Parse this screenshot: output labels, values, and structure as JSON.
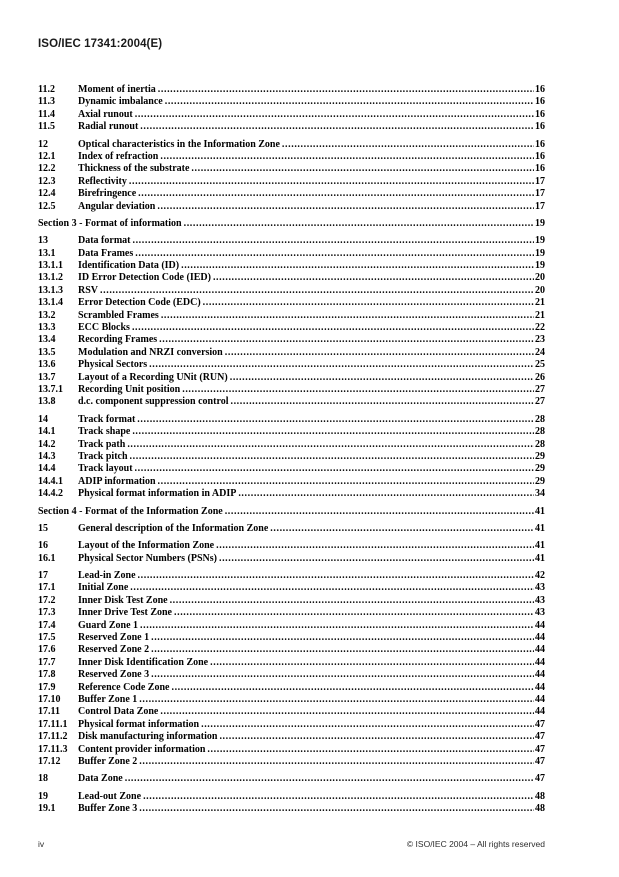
{
  "page": {
    "header_title": "ISO/IEC 17341:2004(E)",
    "footer": {
      "page_label": "iv",
      "copyright": "© ISO/IEC 2004 – All rights reserved"
    },
    "colors": {
      "background": "#ffffff",
      "text": "#000000"
    }
  },
  "toc": {
    "groups": [
      {
        "rows": [
          {
            "num": "11.2",
            "title": "Moment of inertia",
            "page": "16"
          },
          {
            "num": "11.3",
            "title": "Dynamic imbalance",
            "page": "16"
          },
          {
            "num": "11.4",
            "title": "Axial runout",
            "page": "16"
          },
          {
            "num": "11.5",
            "title": "Radial runout",
            "page": "16"
          }
        ]
      },
      {
        "rows": [
          {
            "num": "12",
            "title": "Optical characteristics in the Information Zone",
            "page": "16"
          },
          {
            "num": "12.1",
            "title": "Index of refraction",
            "page": "16"
          },
          {
            "num": "12.2",
            "title": "Thickness of the substrate",
            "page": "16"
          },
          {
            "num": "12.3",
            "title": "Reflectivity",
            "page": "17"
          },
          {
            "num": "12.4",
            "title": "Birefringence",
            "page": "17"
          },
          {
            "num": "12.5",
            "title": "Angular deviation",
            "page": "17"
          }
        ]
      },
      {
        "rows": [
          {
            "num": "",
            "title": "Section 3 - Format of information",
            "page": "19"
          }
        ]
      },
      {
        "rows": [
          {
            "num": "13",
            "title": "Data format",
            "page": "19"
          },
          {
            "num": "13.1",
            "title": "Data Frames",
            "page": "19"
          },
          {
            "num": "13.1.1",
            "title": "Identification Data (ID)",
            "page": "19"
          },
          {
            "num": "13.1.2",
            "title": "ID Error Detection Code (IED)",
            "page": "20"
          },
          {
            "num": "13.1.3",
            "title": "RSV",
            "page": "20"
          },
          {
            "num": "13.1.4",
            "title": "Error Detection Code (EDC)",
            "page": "21"
          },
          {
            "num": "13.2",
            "title": "Scrambled Frames",
            "page": "21"
          },
          {
            "num": "13.3",
            "title": "ECC Blocks",
            "page": "22"
          },
          {
            "num": "13.4",
            "title": "Recording Frames",
            "page": "23"
          },
          {
            "num": "13.5",
            "title": "Modulation and NRZI conversion",
            "page": "24"
          },
          {
            "num": "13.6",
            "title": "Physical Sectors",
            "page": "25"
          },
          {
            "num": "13.7",
            "title": "Layout of a Recording UNit (RUN)",
            "page": "26"
          },
          {
            "num": "13.7.1",
            "title": "Recording Unit position",
            "page": "27"
          },
          {
            "num": "13.8",
            "title": "d.c. component suppression control",
            "page": "27"
          }
        ]
      },
      {
        "rows": [
          {
            "num": "14",
            "title": "Track format",
            "page": "28"
          },
          {
            "num": "14.1",
            "title": "Track shape",
            "page": "28"
          },
          {
            "num": "14.2",
            "title": "Track path",
            "page": "28"
          },
          {
            "num": "14.3",
            "title": "Track pitch",
            "page": "29"
          },
          {
            "num": "14.4",
            "title": "Track layout",
            "page": "29"
          },
          {
            "num": "14.4.1",
            "title": "ADIP information",
            "page": "29"
          },
          {
            "num": "14.4.2",
            "title": "Physical format information in ADIP",
            "page": "34"
          }
        ]
      },
      {
        "rows": [
          {
            "num": "",
            "title": "Section 4 - Format of the Information Zone",
            "page": "41"
          }
        ]
      },
      {
        "rows": [
          {
            "num": "15",
            "title": "General description of the Information Zone",
            "page": "41"
          }
        ]
      },
      {
        "rows": [
          {
            "num": "16",
            "title": "Layout of the Information Zone",
            "page": "41"
          },
          {
            "num": "16.1",
            "title": "Physical Sector Numbers (PSNs)",
            "page": "41"
          }
        ]
      },
      {
        "rows": [
          {
            "num": "17",
            "title": "Lead-in Zone",
            "page": "42"
          },
          {
            "num": "17.1",
            "title": "Initial Zone",
            "page": "43"
          },
          {
            "num": "17.2",
            "title": "Inner Disk Test Zone",
            "page": "43"
          },
          {
            "num": "17.3",
            "title": "Inner Drive Test Zone",
            "page": "43"
          },
          {
            "num": "17.4",
            "title": "Guard Zone 1",
            "page": "44"
          },
          {
            "num": "17.5",
            "title": "Reserved Zone 1",
            "page": "44"
          },
          {
            "num": "17.6",
            "title": "Reserved Zone 2",
            "page": "44"
          },
          {
            "num": "17.7",
            "title": "Inner Disk Identification Zone",
            "page": "44"
          },
          {
            "num": "17.8",
            "title": "Reserved Zone 3",
            "page": "44"
          },
          {
            "num": "17.9",
            "title": "Reference Code Zone",
            "page": "44"
          },
          {
            "num": "17.10",
            "title": "Buffer Zone 1",
            "page": "44"
          },
          {
            "num": "17.11",
            "title": "Control Data Zone",
            "page": "44"
          },
          {
            "num": "17.11.1",
            "title": "Physical format information",
            "page": "47"
          },
          {
            "num": "17.11.2",
            "title": "Disk manufacturing information",
            "page": "47"
          },
          {
            "num": "17.11.3",
            "title": "Content provider information",
            "page": "47"
          },
          {
            "num": "17.12",
            "title": "Buffer Zone 2",
            "page": "47"
          }
        ]
      },
      {
        "rows": [
          {
            "num": "18",
            "title": "Data Zone",
            "page": "47"
          }
        ]
      },
      {
        "rows": [
          {
            "num": "19",
            "title": "Lead-out Zone",
            "page": "48"
          },
          {
            "num": "19.1",
            "title": "Buffer Zone 3",
            "page": "48"
          }
        ]
      }
    ]
  }
}
